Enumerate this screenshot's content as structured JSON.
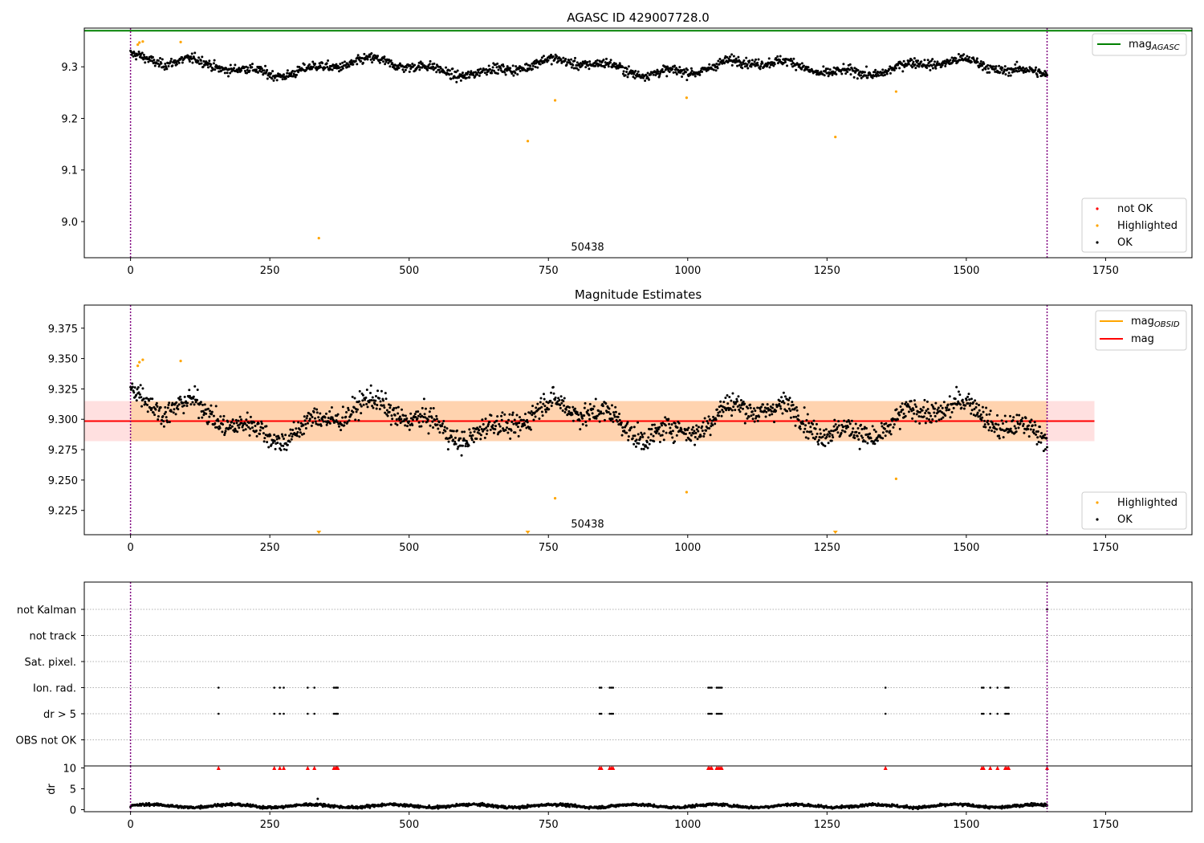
{
  "chart_data": [
    {
      "type": "scatter",
      "title": "AGASC ID 429007728.0",
      "xlabel": "",
      "ylabel": "",
      "xlim": [
        -83,
        1905
      ],
      "ylim": [
        8.93,
        9.375
      ],
      "x_ticks": [
        0,
        250,
        500,
        750,
        1000,
        1250,
        1500,
        1750
      ],
      "y_ticks": [
        9.0,
        9.1,
        9.2,
        9.3
      ],
      "grid": false,
      "obsid_label": "50438",
      "obsid_label_x": 820,
      "obs_boundaries": [
        0,
        1645
      ],
      "lines": [
        {
          "name": "mag_AGASC",
          "y": 9.37,
          "x_range": [
            -83,
            1905
          ]
        }
      ],
      "series": [
        {
          "name": "not OK",
          "x": [],
          "y": []
        },
        {
          "name": "Highlighted",
          "x": [
            13,
            16,
            22,
            90,
            338,
            713,
            762,
            998,
            1265,
            1374
          ],
          "y": [
            9.343,
            9.347,
            9.349,
            9.348,
            8.968,
            9.156,
            9.235,
            9.24,
            9.164,
            9.252
          ]
        },
        {
          "name": "OK",
          "generated": {
            "n": 1640,
            "x_range": [
              0,
              1645
            ],
            "mean": 9.299,
            "sigma": 0.011
          }
        }
      ],
      "legend": {
        "position": "upper-right / lower-right",
        "entries": [
          {
            "label_main": "mag",
            "label_sub": "AGASC",
            "color": "#008000"
          },
          {
            "label": "not OK",
            "color": "#ff0000"
          },
          {
            "label": "Highlighted",
            "color": "#ffa500"
          },
          {
            "label": "OK",
            "color": "#000000"
          }
        ]
      }
    },
    {
      "type": "scatter",
      "title": "Magnitude Estimates",
      "xlabel": "",
      "ylabel": "",
      "xlim": [
        -83,
        1905
      ],
      "ylim": [
        9.205,
        9.394
      ],
      "x_ticks": [
        0,
        250,
        500,
        750,
        1000,
        1250,
        1500,
        1750
      ],
      "y_ticks": [
        9.225,
        9.25,
        9.275,
        9.3,
        9.325,
        9.35,
        9.375
      ],
      "grid": false,
      "obsid_label": "50438",
      "obs_boundaries": [
        0,
        1645
      ],
      "lines": [
        {
          "name": "mag_OBSID",
          "y": 9.2985,
          "band": [
            9.282,
            9.315
          ],
          "x_range": [
            0,
            1645
          ],
          "color": "#ffa500"
        },
        {
          "name": "mag",
          "y": 9.2985,
          "band": [
            9.282,
            9.315
          ],
          "x_range": [
            -83,
            1730
          ],
          "color": "#ff0000"
        }
      ],
      "series": [
        {
          "name": "Highlighted",
          "x": [
            13,
            16,
            22,
            90,
            762,
            998,
            1374
          ],
          "y": [
            9.344,
            9.347,
            9.349,
            9.348,
            9.235,
            9.24,
            9.251
          ]
        },
        {
          "name": "Highlighted (below axis)",
          "x": [
            338,
            713,
            1265
          ],
          "y": [
            9.205,
            9.205,
            9.205
          ]
        },
        {
          "name": "OK",
          "generated": {
            "n": 1640,
            "x_range": [
              0,
              1645
            ],
            "mean": 9.299,
            "sigma": 0.011
          }
        }
      ],
      "legend": {
        "position": "upper-right / lower-right",
        "entries": [
          {
            "label_main": "mag",
            "label_sub": "OBSID",
            "color": "#ffa500"
          },
          {
            "label": "mag",
            "color": "#ff0000"
          },
          {
            "label": "Highlighted",
            "color": "#ffa500"
          },
          {
            "label": "OK",
            "color": "#000000"
          }
        ]
      }
    },
    {
      "type": "scatter",
      "title": "",
      "xlabel": "",
      "ylabel": "",
      "xlim": [
        -83,
        1905
      ],
      "categories": [
        "not Kalman",
        "not track",
        "Sat. pixel.",
        "Ion. rad.",
        "dr > 5",
        "OBS not OK"
      ],
      "grid": true,
      "obs_boundaries": [
        0,
        1645
      ],
      "series": [
        {
          "name": "Ion. rad.",
          "x": [
            158,
            258,
            268,
            275,
            318,
            330,
            365,
            368,
            370,
            372,
            842,
            845,
            860,
            863,
            866,
            1037,
            1040,
            1043,
            1052,
            1055,
            1058,
            1061,
            1355,
            1528,
            1531,
            1543,
            1556,
            1570,
            1573,
            1576
          ]
        },
        {
          "name": "dr > 5",
          "x": [
            158,
            258,
            268,
            275,
            318,
            330,
            365,
            368,
            370,
            372,
            842,
            845,
            860,
            863,
            866,
            1037,
            1040,
            1043,
            1052,
            1055,
            1058,
            1061,
            1355,
            1528,
            1531,
            1543,
            1556,
            1570,
            1573,
            1576
          ]
        },
        {
          "name": "not Kalman",
          "x": [
            1645
          ]
        }
      ]
    },
    {
      "type": "scatter",
      "title": "",
      "xlabel": "",
      "ylabel": "dr",
      "xlim": [
        -83,
        1905
      ],
      "ylim": [
        -0.3,
        10.3
      ],
      "y_ticks": [
        0,
        5,
        10
      ],
      "x_ticks": [
        0,
        250,
        500,
        750,
        1000,
        1250,
        1500,
        1750
      ],
      "obs_boundaries": [
        0,
        1645
      ],
      "series": [
        {
          "name": "dr > 10 (clipped)",
          "x": [
            158,
            258,
            268,
            275,
            318,
            330,
            365,
            368,
            370,
            372,
            842,
            845,
            860,
            863,
            866,
            1037,
            1040,
            1043,
            1052,
            1055,
            1058,
            1061,
            1355,
            1528,
            1531,
            1543,
            1556,
            1570,
            1573,
            1576,
            1645
          ],
          "y": 10,
          "marker": "triangle",
          "color": "#ff0000"
        },
        {
          "name": "dr",
          "generated": {
            "n": 1640,
            "x_range": [
              0,
              1645
            ],
            "mean": 0.9,
            "sigma": 0.45
          }
        },
        {
          "name": "dr outlier",
          "x": [
            336
          ],
          "y": [
            2.6
          ]
        }
      ]
    }
  ]
}
